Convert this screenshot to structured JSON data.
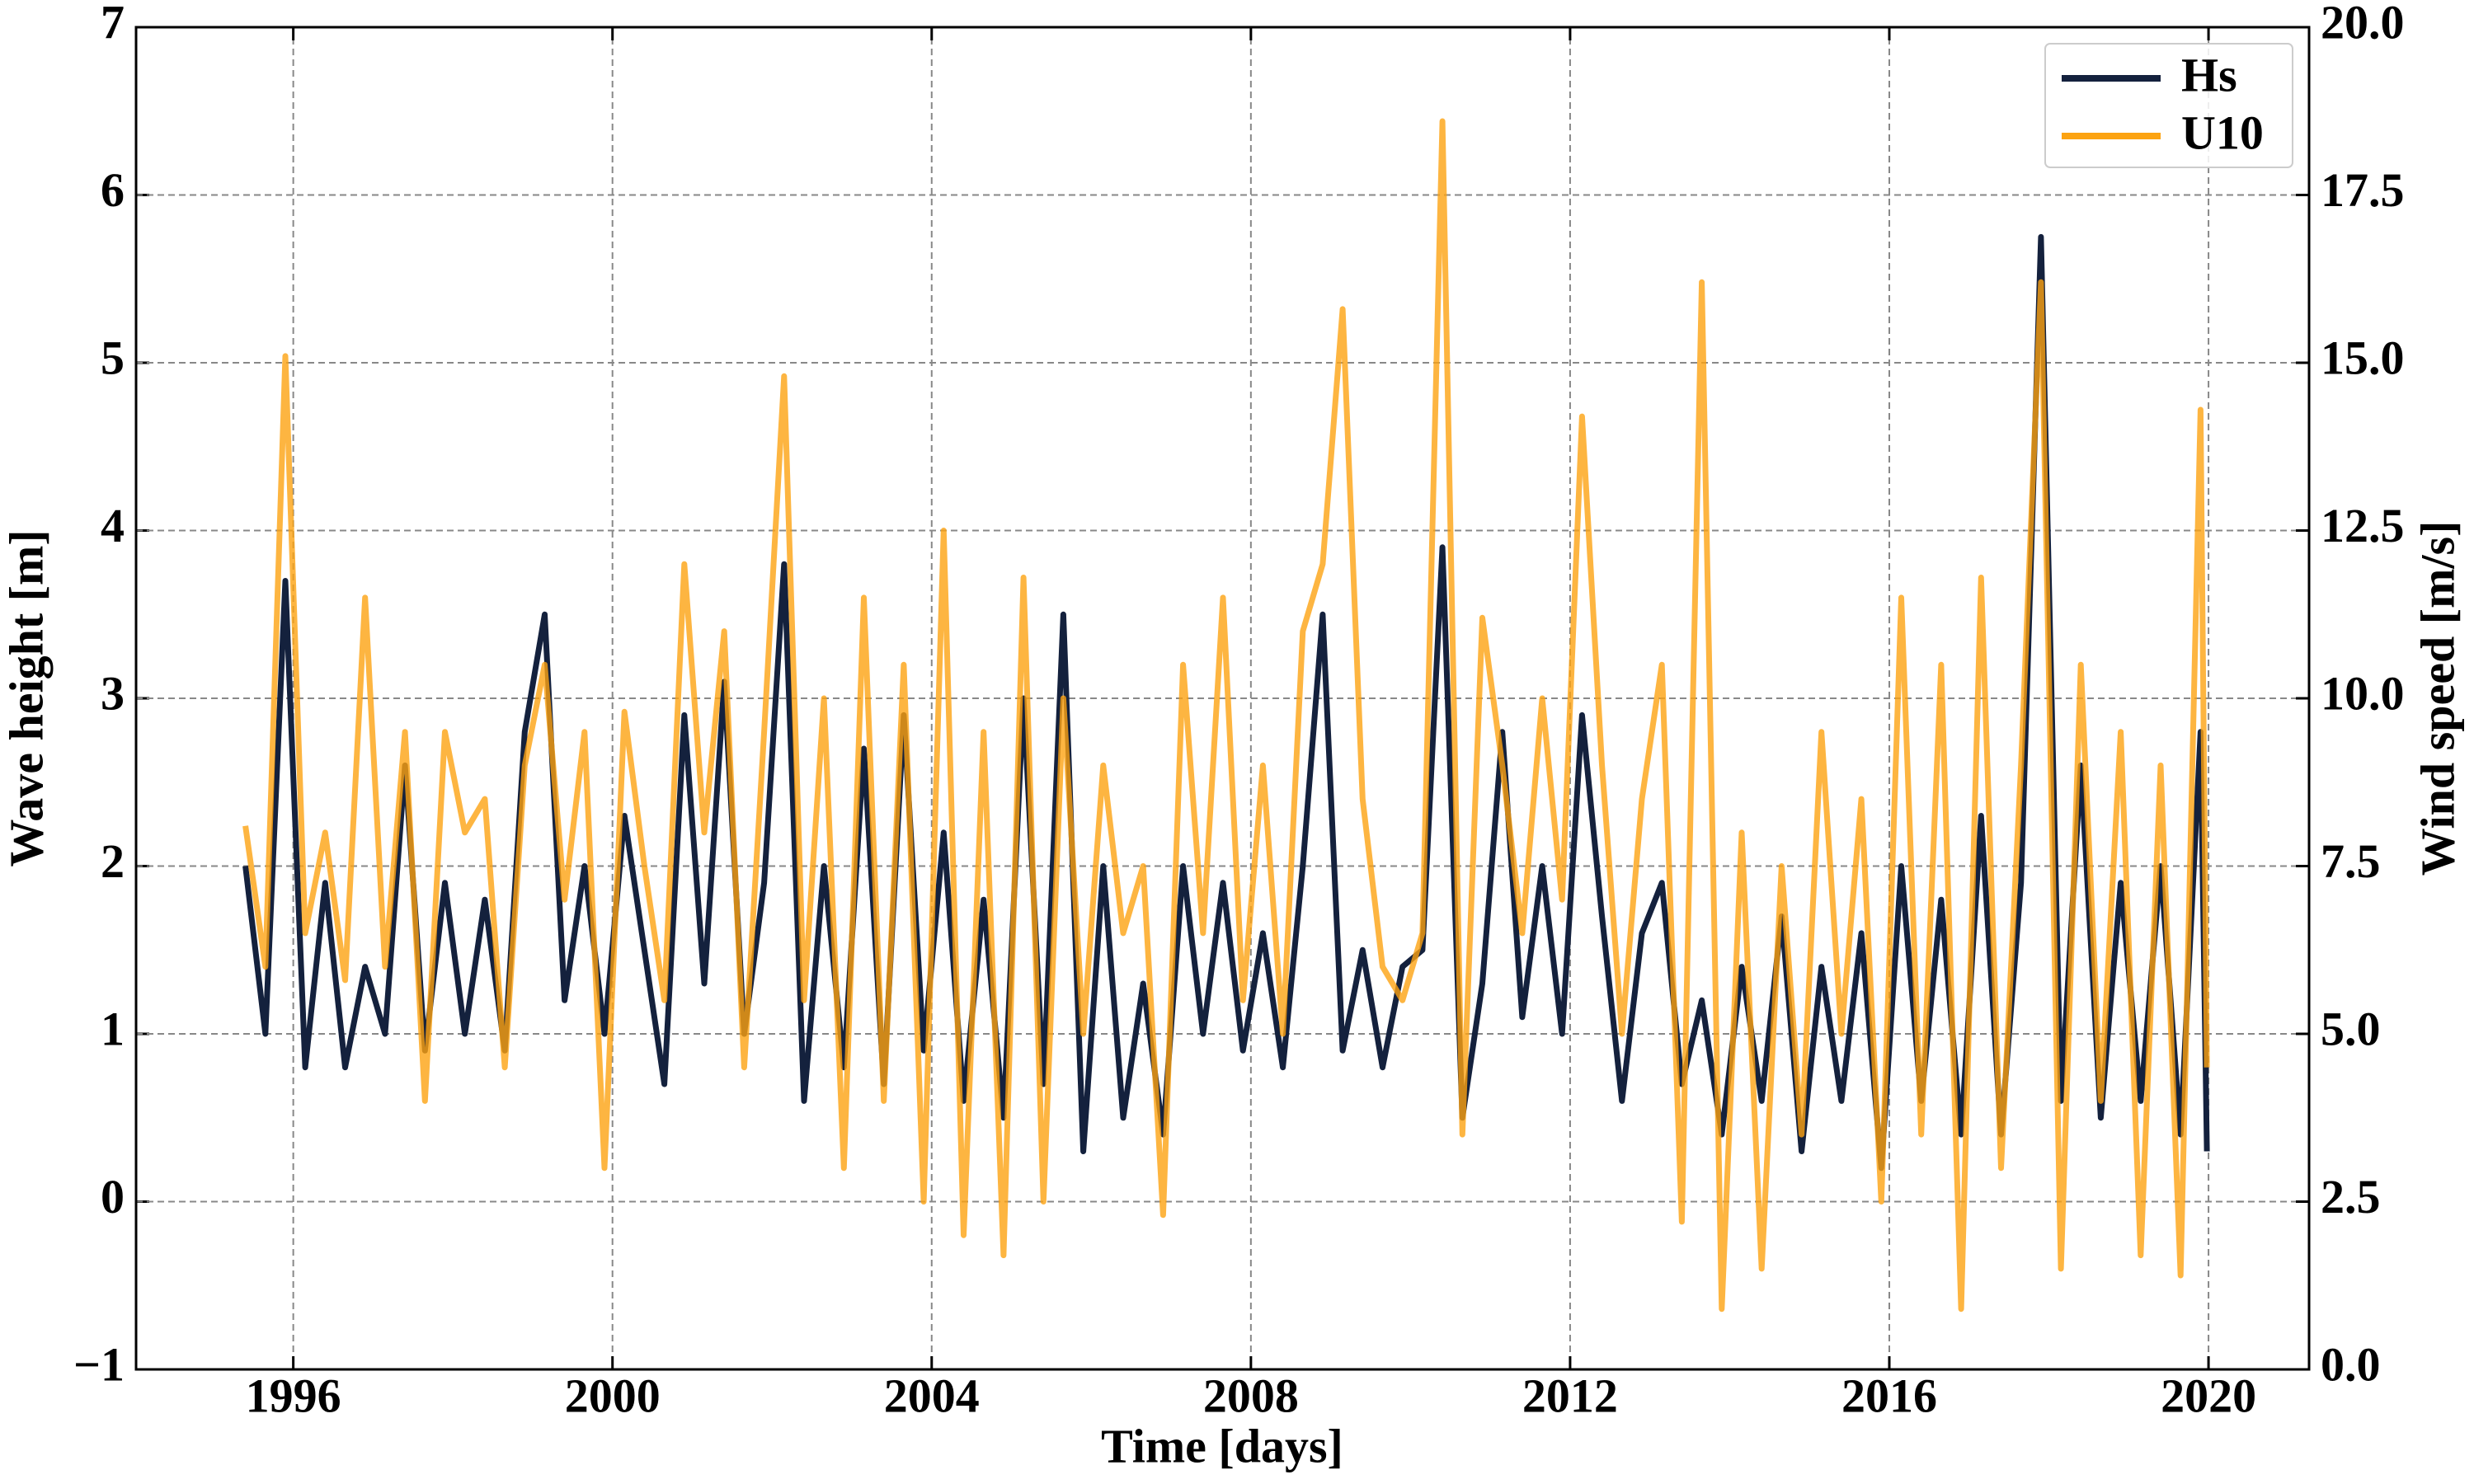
{
  "chart_data": {
    "type": "line",
    "x_label": "Time [days]",
    "y_label": "Wave height [m]",
    "y2_label": "Wind speed [m/s]",
    "x": [
      1995.4,
      1995.65,
      1995.9,
      1996.15,
      1996.4,
      1996.65,
      1996.9,
      1997.15,
      1997.4,
      1997.65,
      1997.9,
      1998.15,
      1998.4,
      1998.65,
      1998.9,
      1999.15,
      1999.4,
      1999.65,
      1999.9,
      2000.15,
      2000.4,
      2000.65,
      2000.9,
      2001.15,
      2001.4,
      2001.65,
      2001.9,
      2002.15,
      2002.4,
      2002.65,
      2002.9,
      2003.15,
      2003.4,
      2003.65,
      2003.9,
      2004.15,
      2004.4,
      2004.65,
      2004.9,
      2005.15,
      2005.4,
      2005.65,
      2005.9,
      2006.15,
      2006.4,
      2006.65,
      2006.9,
      2007.15,
      2007.4,
      2007.65,
      2007.9,
      2008.15,
      2008.4,
      2008.65,
      2008.9,
      2009.15,
      2009.4,
      2009.65,
      2009.9,
      2010.15,
      2010.4,
      2010.65,
      2010.9,
      2011.15,
      2011.4,
      2011.65,
      2011.9,
      2012.15,
      2012.4,
      2012.65,
      2012.9,
      2013.15,
      2013.4,
      2013.65,
      2013.9,
      2014.15,
      2014.4,
      2014.65,
      2014.9,
      2015.15,
      2015.4,
      2015.65,
      2015.9,
      2016.15,
      2016.4,
      2016.65,
      2016.9,
      2017.15,
      2017.4,
      2017.65,
      2017.9,
      2018.15,
      2018.4,
      2018.65,
      2018.9,
      2019.15,
      2019.4,
      2019.65,
      2019.9,
      2019.98
    ],
    "series": [
      {
        "name": "Hs",
        "color": "#14213d",
        "values": [
          2.0,
          1.0,
          3.7,
          0.8,
          1.9,
          0.8,
          1.4,
          1.0,
          2.6,
          0.9,
          1.9,
          1.0,
          1.8,
          0.9,
          2.8,
          3.5,
          1.2,
          2.0,
          1.0,
          2.3,
          1.5,
          0.7,
          2.9,
          1.3,
          3.1,
          1.0,
          1.9,
          3.8,
          0.6,
          2.0,
          0.8,
          2.7,
          0.7,
          2.9,
          0.9,
          2.2,
          0.6,
          1.8,
          0.5,
          3.0,
          0.7,
          3.5,
          0.3,
          2.0,
          0.5,
          1.3,
          0.4,
          2.0,
          1.0,
          1.9,
          0.9,
          1.6,
          0.8,
          2.0,
          3.5,
          0.9,
          1.5,
          0.8,
          1.4,
          1.5,
          3.9,
          0.5,
          1.3,
          2.8,
          1.1,
          2.0,
          1.0,
          2.9,
          1.7,
          0.6,
          1.6,
          1.9,
          0.7,
          1.2,
          0.4,
          1.4,
          0.6,
          1.7,
          0.3,
          1.4,
          0.6,
          1.6,
          0.2,
          2.0,
          0.6,
          1.8,
          0.4,
          2.3,
          0.4,
          1.9,
          5.75,
          0.6,
          2.6,
          0.5,
          1.9,
          0.6,
          2.0,
          0.4,
          2.8,
          0.3
        ]
      },
      {
        "name": "U10",
        "color": "#fca311",
        "axis": "y2",
        "values": [
          8.1,
          6.0,
          15.1,
          6.5,
          8.0,
          5.8,
          11.5,
          6.0,
          9.5,
          4.0,
          9.5,
          8.0,
          8.5,
          4.5,
          9.0,
          10.5,
          7.0,
          9.5,
          3.0,
          9.8,
          7.5,
          5.5,
          12.0,
          8.0,
          11.0,
          4.5,
          9.5,
          14.8,
          5.5,
          10.0,
          3.0,
          11.5,
          4.0,
          10.5,
          2.5,
          12.5,
          2.0,
          9.5,
          1.7,
          11.8,
          2.5,
          10.0,
          5.0,
          9.0,
          6.5,
          7.5,
          2.3,
          10.5,
          6.5,
          11.5,
          5.5,
          9.0,
          5.0,
          11.0,
          12.0,
          15.8,
          8.5,
          6.0,
          5.5,
          6.5,
          18.6,
          3.5,
          11.2,
          9.0,
          6.5,
          10.0,
          7.0,
          14.2,
          9.0,
          5.0,
          8.5,
          10.5,
          2.2,
          16.2,
          0.9,
          8.0,
          1.5,
          7.5,
          3.5,
          9.5,
          5.0,
          8.5,
          2.5,
          11.5,
          3.5,
          10.5,
          0.9,
          11.8,
          3.0,
          9.0,
          16.2,
          1.5,
          10.5,
          4.0,
          9.5,
          1.7,
          9.0,
          1.4,
          14.3,
          4.5
        ]
      }
    ],
    "xlim": [
      1994.03,
      2021.26
    ],
    "xticks": [
      1996,
      2000,
      2004,
      2008,
      2012,
      2016,
      2020
    ],
    "ylim": [
      -1,
      7
    ],
    "yticks": [
      {
        "value": -1,
        "label": "−1"
      },
      0,
      1,
      2,
      3,
      4,
      5,
      6,
      7
    ],
    "y2lim": [
      0,
      20
    ],
    "y2ticks": [
      {
        "value": 0,
        "label": "0.0"
      },
      2.5,
      {
        "value": 5,
        "label": "5.0"
      },
      7.5,
      {
        "value": 10,
        "label": "10.0"
      },
      12.5,
      {
        "value": 15,
        "label": "15.0"
      },
      17.5,
      {
        "value": 20,
        "label": "20.0"
      }
    ],
    "grid": true,
    "legend": "upper right"
  }
}
